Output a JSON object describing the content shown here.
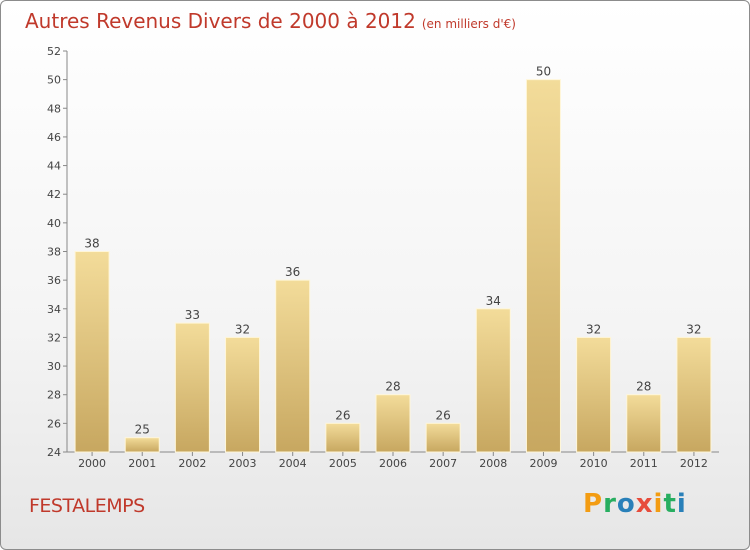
{
  "title": "Autres Revenus Divers de 2000 à 2012",
  "subtitle": "(en milliers d'€)",
  "place": "FESTALEMPS",
  "logo": [
    "P",
    "r",
    "o",
    "x",
    "i",
    "t",
    "i"
  ],
  "logo_colors": [
    "#f39c12",
    "#27ae60",
    "#2980b9",
    "#e74c3c",
    "#f39c12",
    "#27ae60",
    "#2980b9"
  ],
  "colors": {
    "bar_light": "#f3dc9a",
    "bar_dark": "#c7a760",
    "title": "#c0392b"
  },
  "chart_data": {
    "type": "bar",
    "categories": [
      "2000",
      "2001",
      "2002",
      "2003",
      "2004",
      "2005",
      "2006",
      "2007",
      "2008",
      "2009",
      "2010",
      "2011",
      "2012"
    ],
    "values": [
      38,
      25,
      33,
      32,
      36,
      26,
      28,
      26,
      34,
      50,
      32,
      28,
      32
    ],
    "title": "Autres Revenus Divers de 2000 à 2012",
    "xlabel": "",
    "ylabel": "",
    "ylim": [
      24,
      52
    ],
    "yticks": [
      24,
      26,
      28,
      30,
      32,
      34,
      36,
      38,
      40,
      42,
      44,
      46,
      48,
      50,
      52
    ],
    "grid": false
  }
}
